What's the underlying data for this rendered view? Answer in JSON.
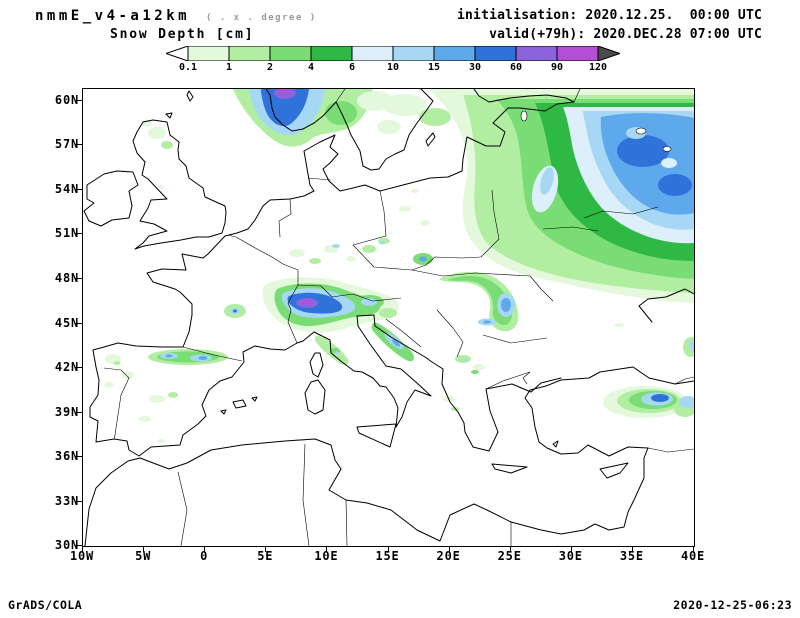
{
  "header": {
    "model": "nmmE_v4-a12km",
    "resolution_note": "( . x . degree )",
    "variable": "Snow Depth [cm]",
    "init_label": "initialisation: 2020.12.25.  00:00 UTC",
    "valid_label": "valid(+79h): 2020.DEC.28 07:00 UTC"
  },
  "colorbar": {
    "levels": [
      "0.1",
      "1",
      "2",
      "4",
      "6",
      "10",
      "15",
      "30",
      "60",
      "90",
      "120"
    ],
    "colors": [
      "#ffffff",
      "#e4f8dc",
      "#b2eea2",
      "#7adc74",
      "#2eb844",
      "#dceffa",
      "#a6d7f5",
      "#5ea8ec",
      "#2f72d9",
      "#8a63dd",
      "#b44ed6",
      "#4a4a4a"
    ]
  },
  "map": {
    "y_ticks": [
      "60N",
      "57N",
      "54N",
      "51N",
      "48N",
      "45N",
      "42N",
      "39N",
      "36N",
      "33N",
      "30N"
    ],
    "x_ticks": [
      "10W",
      "5W",
      "0",
      "5E",
      "10E",
      "15E",
      "20E",
      "25E",
      "30E",
      "35E",
      "40E"
    ]
  },
  "footer": {
    "left": "GrADS/COLA",
    "right": "2020-12-25-06:23"
  }
}
